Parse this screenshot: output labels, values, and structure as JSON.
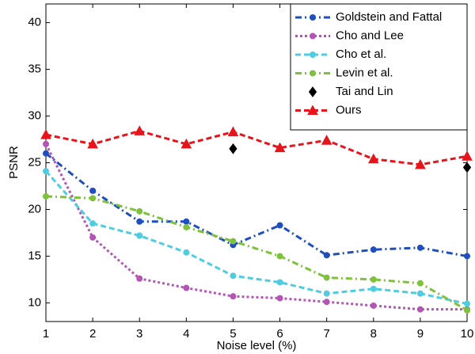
{
  "chart_data": {
    "type": "line",
    "x_label": "Noise level (%)",
    "y_label": "PSNR",
    "x": [
      1,
      2,
      3,
      4,
      5,
      6,
      7,
      8,
      9,
      10
    ],
    "xlim": [
      1,
      10
    ],
    "xticks": [
      1,
      2,
      3,
      4,
      5,
      6,
      7,
      8,
      9,
      10
    ],
    "ylim": [
      8,
      42
    ],
    "yticks": [
      10,
      15,
      20,
      25,
      30,
      35,
      40
    ],
    "legend": "upper right",
    "series": [
      {
        "name": "Goldstein and Fattal",
        "color": "#1f4fbf",
        "line_style": "dashdot",
        "marker": "circle",
        "values": [
          26.0,
          22.0,
          18.7,
          18.7,
          16.2,
          18.3,
          15.1,
          15.7,
          15.9,
          15.0
        ]
      },
      {
        "name": "Cho and Lee",
        "color": "#b455b5",
        "line_style": "dotted",
        "marker": "circle",
        "values": [
          27.0,
          17.0,
          12.6,
          11.6,
          10.7,
          10.5,
          10.1,
          9.7,
          9.3,
          9.3
        ]
      },
      {
        "name": "Cho et al.",
        "color": "#4fcde0",
        "line_style": "dashed",
        "marker": "circle",
        "values": [
          24.1,
          18.5,
          17.2,
          15.4,
          12.9,
          12.2,
          11.0,
          11.5,
          11.0,
          9.9
        ]
      },
      {
        "name": "Levin et al.",
        "color": "#7ec13b",
        "line_style": "dashdot",
        "marker": "circle",
        "values": [
          21.4,
          21.2,
          19.8,
          18.1,
          16.6,
          15.0,
          12.7,
          12.5,
          12.1,
          9.2
        ]
      },
      {
        "name": "Tai and Lin",
        "color": "#000000",
        "line_style": "none",
        "marker": "diamond",
        "values": [
          null,
          null,
          null,
          null,
          26.5,
          null,
          null,
          null,
          null,
          24.5
        ]
      },
      {
        "name": "Ours",
        "color": "#e8141b",
        "line_style": "dashed",
        "marker": "triangle",
        "values": [
          28.0,
          27.0,
          28.4,
          27.0,
          28.3,
          26.6,
          27.4,
          25.4,
          24.8,
          25.7
        ]
      }
    ]
  }
}
